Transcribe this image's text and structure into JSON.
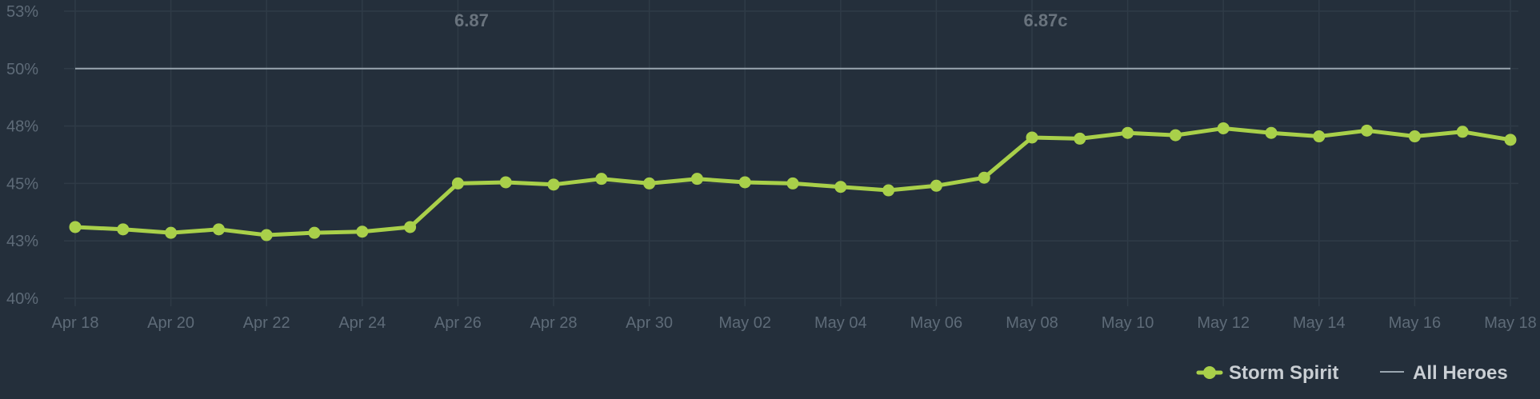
{
  "chart_data": {
    "type": "line",
    "x": [
      "Apr 18",
      "Apr 19",
      "Apr 20",
      "Apr 21",
      "Apr 22",
      "Apr 23",
      "Apr 24",
      "Apr 25",
      "Apr 26",
      "Apr 27",
      "Apr 28",
      "Apr 29",
      "Apr 30",
      "May 01",
      "May 02",
      "May 03",
      "May 04",
      "May 05",
      "May 06",
      "May 07",
      "May 08",
      "May 09",
      "May 10",
      "May 11",
      "May 12",
      "May 13",
      "May 14",
      "May 15",
      "May 16",
      "May 17",
      "May 18"
    ],
    "x_tick_labels": [
      "Apr 18",
      "Apr 20",
      "Apr 22",
      "Apr 24",
      "Apr 26",
      "Apr 28",
      "Apr 30",
      "May 02",
      "May 04",
      "May 06",
      "May 08",
      "May 10",
      "May 12",
      "May 14",
      "May 16",
      "May 18"
    ],
    "y_tick_labels": [
      "40%",
      "43%",
      "45%",
      "48%",
      "50%",
      "53%"
    ],
    "ylim": [
      40,
      52.5
    ],
    "grid": true,
    "series": [
      {
        "name": "Storm Spirit",
        "color": "#a9d04a",
        "values": [
          43.1,
          43.0,
          42.85,
          43.0,
          42.75,
          42.85,
          42.9,
          43.1,
          45.0,
          45.05,
          44.95,
          45.2,
          45.0,
          45.2,
          45.05,
          45.0,
          44.85,
          44.7,
          44.9,
          45.25,
          47.0,
          46.95,
          47.2,
          47.1,
          47.4,
          47.2,
          47.05,
          47.3,
          47.05,
          47.25,
          46.9
        ]
      },
      {
        "name": "All Heroes",
        "color": "#9aa6b0",
        "values": [
          50,
          50,
          50,
          50,
          50,
          50,
          50,
          50,
          50,
          50,
          50,
          50,
          50,
          50,
          50,
          50,
          50,
          50,
          50,
          50,
          50,
          50,
          50,
          50,
          50,
          50,
          50,
          50,
          50,
          50,
          50
        ]
      }
    ],
    "annotations": [
      {
        "label": "6.87",
        "x": "Apr 26"
      },
      {
        "label": "6.87c",
        "x": "May 08"
      }
    ],
    "legend": "bottom-right"
  }
}
